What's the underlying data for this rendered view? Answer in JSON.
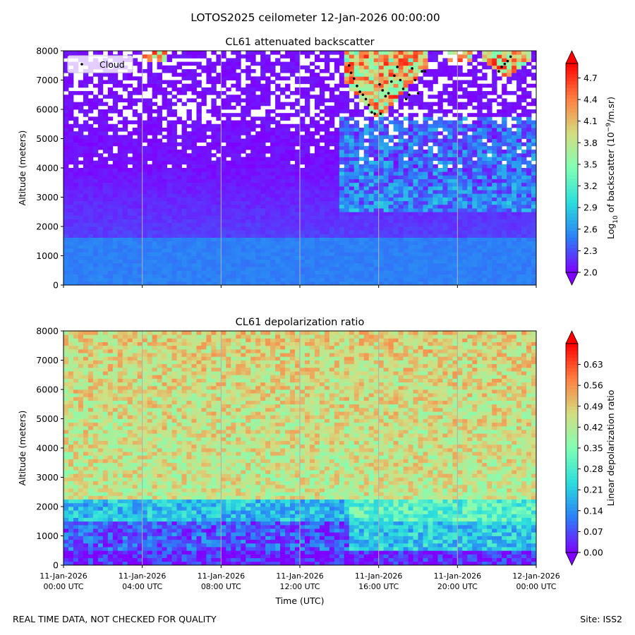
{
  "figure": {
    "suptitle": "LOTOS2025 ceilometer 12-Jan-2026 00:00:00",
    "footer_left": "REAL TIME DATA, NOT CHECKED FOR QUALITY",
    "footer_right": "Site: ISS2"
  },
  "colors": {
    "cmap": [
      "#7f00ff",
      "#2c7ef7",
      "#2adddd",
      "#80ffb4",
      "#d4dd80",
      "#ff7e41",
      "#ff0000"
    ],
    "vlines": "#b0b0b0",
    "cloud_marker": "#000000"
  },
  "chart_data": [
    {
      "type": "heatmap",
      "title": "CL61 attenuated backscatter",
      "ylabel": "Altitude (meters)",
      "xlabel": "",
      "xlim_hours": [
        0,
        24
      ],
      "ylim": [
        0,
        8000
      ],
      "yticks": [
        0,
        1000,
        2000,
        3000,
        4000,
        5000,
        6000,
        7000,
        8000
      ],
      "xtick_hours": [
        0,
        4,
        8,
        12,
        16,
        20,
        24
      ],
      "xtick_labels": [],
      "vline_hours": [
        4,
        8,
        12,
        16,
        20
      ],
      "legend": {
        "label": "Cloud",
        "position": "top-left"
      },
      "colorbar": {
        "label_prefix": "Log",
        "label_sub": "10",
        "label_mid": " of backscatter (10",
        "label_sup": "−9",
        "label_suffix": "/m.sr)",
        "range": [
          2.0,
          4.9
        ],
        "ticks": [
          "2.0",
          "2.3",
          "2.6",
          "2.9",
          "3.2",
          "3.5",
          "3.8",
          "4.1",
          "4.4",
          "4.7"
        ],
        "extend": "both"
      },
      "cloud_points": [
        {
          "t": 14.5,
          "alt": 7500
        },
        {
          "t": 14.6,
          "alt": 7250
        },
        {
          "t": 14.75,
          "alt": 7050
        },
        {
          "t": 14.9,
          "alt": 6800
        },
        {
          "t": 15.05,
          "alt": 6600
        },
        {
          "t": 15.2,
          "alt": 6500
        },
        {
          "t": 15.35,
          "alt": 6350
        },
        {
          "t": 15.5,
          "alt": 6150
        },
        {
          "t": 15.65,
          "alt": 5900
        },
        {
          "t": 15.8,
          "alt": 5850
        },
        {
          "t": 16.1,
          "alt": 5850
        },
        {
          "t": 16.05,
          "alt": 6850
        },
        {
          "t": 16.2,
          "alt": 6650
        },
        {
          "t": 16.35,
          "alt": 6450
        },
        {
          "t": 16.5,
          "alt": 6550
        },
        {
          "t": 16.65,
          "alt": 6950
        },
        {
          "t": 16.8,
          "alt": 7150
        },
        {
          "t": 16.95,
          "alt": 7450
        },
        {
          "t": 17.1,
          "alt": 7000
        },
        {
          "t": 17.25,
          "alt": 6700
        },
        {
          "t": 17.4,
          "alt": 6350
        },
        {
          "t": 17.55,
          "alt": 6500
        },
        {
          "t": 17.7,
          "alt": 7400
        },
        {
          "t": 17.85,
          "alt": 7000
        },
        {
          "t": 18.0,
          "alt": 6550
        },
        {
          "t": 18.2,
          "alt": 7300
        },
        {
          "t": 18.35,
          "alt": 7300
        },
        {
          "t": 22.1,
          "alt": 7300
        },
        {
          "t": 22.25,
          "alt": 7450
        },
        {
          "t": 22.4,
          "alt": 7550
        },
        {
          "t": 22.55,
          "alt": 7650
        },
        {
          "t": 22.7,
          "alt": 7800
        }
      ]
    },
    {
      "type": "heatmap",
      "title": "CL61 depolarization ratio",
      "ylabel": "Altitude (meters)",
      "xlabel": "Time (UTC)",
      "xlim_hours": [
        0,
        24
      ],
      "ylim": [
        0,
        8000
      ],
      "yticks": [
        0,
        1000,
        2000,
        3000,
        4000,
        5000,
        6000,
        7000,
        8000
      ],
      "xtick_hours": [
        0,
        4,
        8,
        12,
        16,
        20,
        24
      ],
      "xtick_labels": [
        [
          "11-Jan-2026",
          "00:00 UTC"
        ],
        [
          "11-Jan-2026",
          "04:00 UTC"
        ],
        [
          "11-Jan-2026",
          "08:00 UTC"
        ],
        [
          "11-Jan-2026",
          "12:00 UTC"
        ],
        [
          "11-Jan-2026",
          "16:00 UTC"
        ],
        [
          "11-Jan-2026",
          "20:00 UTC"
        ],
        [
          "12-Jan-2026",
          "00:00 UTC"
        ]
      ],
      "vline_hours": [
        4,
        8,
        12,
        16,
        20
      ],
      "colorbar": {
        "label": "Linear depolarization ratio",
        "range": [
          0.0,
          0.7
        ],
        "ticks": [
          "0.00",
          "0.07",
          "0.14",
          "0.21",
          "0.28",
          "0.35",
          "0.42",
          "0.49",
          "0.56",
          "0.63"
        ],
        "extend": "both"
      }
    }
  ]
}
